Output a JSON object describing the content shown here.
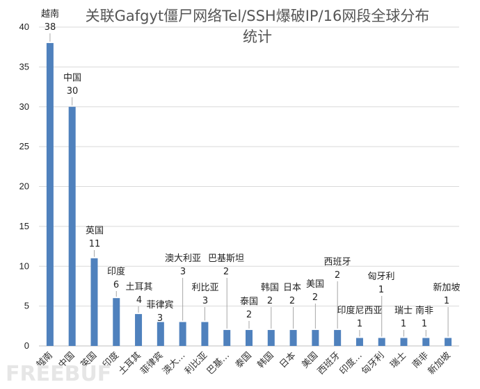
{
  "chart_data": {
    "type": "bar",
    "title_line1": "关联Gafgyt僵尸网络Tel/SSH爆破IP/16网段全球分布",
    "title_line2": "统计",
    "categories": [
      "越南",
      "中国",
      "英国",
      "印度",
      "土耳其",
      "菲律宾",
      "澳大…",
      "利比亚",
      "巴基…",
      "泰国",
      "韩国",
      "日本",
      "美国",
      "西班牙",
      "印度…",
      "匈牙利",
      "瑞士",
      "南非",
      "新加坡"
    ],
    "data_label_names": [
      "越南",
      "中国",
      "英国",
      "印度",
      "土耳其",
      "菲律宾",
      "澳大利亚",
      "利比亚",
      "巴基斯坦",
      "泰国",
      "韩国",
      "日本",
      "美国",
      "西班牙",
      "印度尼西亚",
      "匈牙利",
      "瑞士",
      "南非",
      "新加坡"
    ],
    "values": [
      38,
      30,
      11,
      6,
      4,
      3,
      3,
      3,
      2,
      2,
      2,
      2,
      2,
      2,
      1,
      1,
      1,
      1,
      1
    ],
    "ylim": [
      0,
      40
    ],
    "yticks": [
      0,
      5,
      10,
      15,
      20,
      25,
      30,
      35,
      40
    ],
    "grid": true,
    "bar_color": "#4f81bd"
  },
  "watermark": "FREEBUF"
}
